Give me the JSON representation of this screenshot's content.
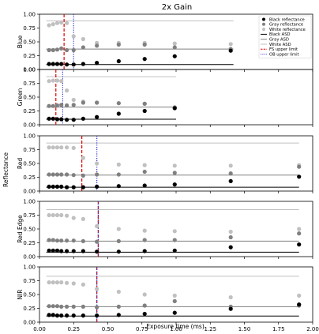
{
  "chart_data": {
    "type": "scatter",
    "title": "2x Gain",
    "xlabel": "Exposure time (ms)",
    "ylabel": "Reflectance",
    "xlim": [
      0.0,
      2.0
    ],
    "ylim": [
      0.0,
      1.0
    ],
    "xticks": [
      "0.00",
      "0.25",
      "0.50",
      "0.75",
      "1.00",
      "1.25",
      "1.50",
      "1.75",
      "2.00"
    ],
    "yticks": [
      "0.00",
      "0.25",
      "0.50",
      "0.75",
      "1.00"
    ],
    "legend": {
      "placement": "top-right",
      "items": [
        {
          "label": "Black reflectance",
          "kind": "dot",
          "color": "#000000"
        },
        {
          "label": "Gray reflectance",
          "kind": "dot",
          "color": "#808080"
        },
        {
          "label": "White reflectance",
          "kind": "dot",
          "color": "#c0c0c0"
        },
        {
          "label": "Black ASD",
          "kind": "line",
          "color": "#000000"
        },
        {
          "label": "Gray ASD",
          "kind": "line",
          "color": "#808080"
        },
        {
          "label": "White ASD",
          "kind": "line",
          "color": "#c0c0c0"
        },
        {
          "label": "FS upper limit",
          "kind": "dash",
          "color": "#e00000"
        },
        {
          "label": "OB upper limit",
          "kind": "dot-line",
          "color": "#3030d0"
        }
      ]
    },
    "colors": {
      "black": "#000000",
      "gray": "#808080",
      "white": "#c0c0c0",
      "fs": "#e00000",
      "ob": "#3030d0"
    },
    "panels": [
      {
        "ylabel": "Blue",
        "asd": {
          "black": 0.09,
          "gray": 0.37,
          "white": 0.88,
          "xend": 1.42
        },
        "fs_limit": 0.18,
        "ob_limit": 0.25,
        "series": {
          "white": {
            "x": [
              0.07,
              0.1,
              0.13,
              0.16,
              0.2,
              0.25,
              0.32,
              0.42,
              0.58,
              0.77,
              0.99,
              1.4
            ],
            "y": [
              0.8,
              0.82,
              0.84,
              0.85,
              0.84,
              0.6,
              0.55,
              0.48,
              0.48,
              0.48,
              0.47,
              0.46
            ]
          },
          "gray": {
            "x": [
              0.07,
              0.1,
              0.13,
              0.16,
              0.2,
              0.25,
              0.32,
              0.42,
              0.58,
              0.77,
              0.99,
              1.4
            ],
            "y": [
              0.35,
              0.35,
              0.36,
              0.38,
              0.35,
              0.35,
              0.4,
              0.43,
              0.45,
              0.45,
              0.4,
              0.37
            ]
          },
          "black": {
            "x": [
              0.07,
              0.1,
              0.13,
              0.16,
              0.2,
              0.25,
              0.32,
              0.42,
              0.58,
              0.77,
              0.99,
              1.4
            ],
            "y": [
              0.1,
              0.1,
              0.1,
              0.1,
              0.09,
              0.09,
              0.1,
              0.12,
              0.15,
              0.19,
              0.24,
              0.34
            ]
          }
        }
      },
      {
        "ylabel": "Green",
        "asd": {
          "black": 0.1,
          "gray": 0.32,
          "white": 0.87,
          "xend": 1.0
        },
        "fs_limit": 0.12,
        "ob_limit": 0.17,
        "series": {
          "white": {
            "x": [
              0.07,
              0.1,
              0.13,
              0.16,
              0.2,
              0.25,
              0.32,
              0.42,
              0.58,
              0.77,
              0.99
            ],
            "y": [
              0.79,
              0.8,
              0.8,
              0.79,
              0.62,
              0.45,
              0.42,
              0.4,
              0.39,
              0.38,
              0.32
            ]
          },
          "gray": {
            "x": [
              0.07,
              0.1,
              0.13,
              0.16,
              0.2,
              0.25,
              0.32,
              0.42,
              0.58,
              0.77,
              0.99
            ],
            "y": [
              0.34,
              0.34,
              0.35,
              0.36,
              0.35,
              0.36,
              0.4,
              0.4,
              0.39,
              0.38,
              0.31
            ]
          },
          "black": {
            "x": [
              0.07,
              0.1,
              0.13,
              0.16,
              0.2,
              0.25,
              0.32,
              0.42,
              0.58,
              0.77,
              0.99
            ],
            "y": [
              0.11,
              0.11,
              0.1,
              0.1,
              0.09,
              0.09,
              0.11,
              0.14,
              0.2,
              0.25,
              0.3
            ]
          }
        }
      },
      {
        "ylabel": "Red",
        "asd": {
          "black": 0.07,
          "gray": 0.29,
          "white": 0.87,
          "xend": 1.9
        },
        "fs_limit": 0.31,
        "ob_limit": 0.42,
        "series": {
          "white": {
            "x": [
              0.07,
              0.1,
              0.13,
              0.16,
              0.2,
              0.25,
              0.32,
              0.42,
              0.58,
              0.77,
              0.99,
              1.4,
              1.9
            ],
            "y": [
              0.79,
              0.79,
              0.79,
              0.79,
              0.79,
              0.78,
              0.6,
              0.5,
              0.48,
              0.47,
              0.46,
              0.46,
              0.47
            ]
          },
          "gray": {
            "x": [
              0.07,
              0.1,
              0.13,
              0.16,
              0.2,
              0.25,
              0.32,
              0.42,
              0.58,
              0.77,
              0.99,
              1.4,
              1.9
            ],
            "y": [
              0.3,
              0.3,
              0.3,
              0.3,
              0.3,
              0.29,
              0.28,
              0.3,
              0.3,
              0.35,
              0.33,
              0.32,
              0.44
            ]
          },
          "black": {
            "x": [
              0.07,
              0.1,
              0.13,
              0.16,
              0.2,
              0.25,
              0.32,
              0.42,
              0.58,
              0.77,
              0.99,
              1.4,
              1.9
            ],
            "y": [
              0.08,
              0.08,
              0.08,
              0.08,
              0.07,
              0.07,
              0.07,
              0.08,
              0.09,
              0.1,
              0.12,
              0.18,
              0.26
            ]
          }
        }
      },
      {
        "ylabel": "Red Edge",
        "asd": {
          "black": 0.08,
          "gray": 0.28,
          "white": 0.85,
          "xend": 1.9
        },
        "fs_limit": 0.43,
        "ob_limit": 0.43,
        "series": {
          "white": {
            "x": [
              0.07,
              0.1,
              0.13,
              0.16,
              0.2,
              0.25,
              0.32,
              0.42,
              0.58,
              0.77,
              0.99,
              1.4,
              1.9
            ],
            "y": [
              0.75,
              0.75,
              0.75,
              0.75,
              0.74,
              0.7,
              0.68,
              0.55,
              0.5,
              0.47,
              0.46,
              0.45,
              0.5
            ]
          },
          "gray": {
            "x": [
              0.07,
              0.1,
              0.13,
              0.16,
              0.2,
              0.25,
              0.32,
              0.42,
              0.58,
              0.77,
              0.99,
              1.4,
              1.9
            ],
            "y": [
              0.3,
              0.3,
              0.29,
              0.29,
              0.29,
              0.29,
              0.28,
              0.27,
              0.28,
              0.3,
              0.3,
              0.35,
              0.42
            ]
          },
          "black": {
            "x": [
              0.07,
              0.1,
              0.13,
              0.16,
              0.2,
              0.25,
              0.32,
              0.42,
              0.58,
              0.77,
              0.99,
              1.4,
              1.9
            ],
            "y": [
              0.11,
              0.11,
              0.11,
              0.1,
              0.1,
              0.1,
              0.1,
              0.09,
              0.09,
              0.1,
              0.11,
              0.17,
              0.22
            ]
          }
        }
      },
      {
        "ylabel": "NIR",
        "asd": {
          "black": 0.11,
          "gray": 0.28,
          "white": 0.83,
          "xend": 1.9
        },
        "fs_limit": 0.42,
        "ob_limit": 0.42,
        "series": {
          "white": {
            "x": [
              0.07,
              0.1,
              0.13,
              0.16,
              0.2,
              0.25,
              0.32,
              0.42,
              0.58,
              0.77,
              0.99,
              1.4,
              1.9
            ],
            "y": [
              0.72,
              0.72,
              0.72,
              0.72,
              0.71,
              0.7,
              0.68,
              0.6,
              0.55,
              0.5,
              0.48,
              0.45,
              0.48
            ]
          },
          "gray": {
            "x": [
              0.07,
              0.1,
              0.13,
              0.16,
              0.2,
              0.25,
              0.32,
              0.42,
              0.58,
              0.77,
              0.99,
              1.4,
              1.9
            ],
            "y": [
              0.29,
              0.29,
              0.29,
              0.28,
              0.28,
              0.28,
              0.28,
              0.27,
              0.28,
              0.3,
              0.38,
              0.28,
              0.3
            ]
          },
          "black": {
            "x": [
              0.07,
              0.1,
              0.13,
              0.16,
              0.2,
              0.25,
              0.32,
              0.42,
              0.58,
              0.77,
              0.99,
              1.4,
              1.9
            ],
            "y": [
              0.13,
              0.13,
              0.12,
              0.12,
              0.12,
              0.12,
              0.12,
              0.12,
              0.13,
              0.15,
              0.17,
              0.24,
              0.32
            ]
          }
        }
      }
    ]
  }
}
